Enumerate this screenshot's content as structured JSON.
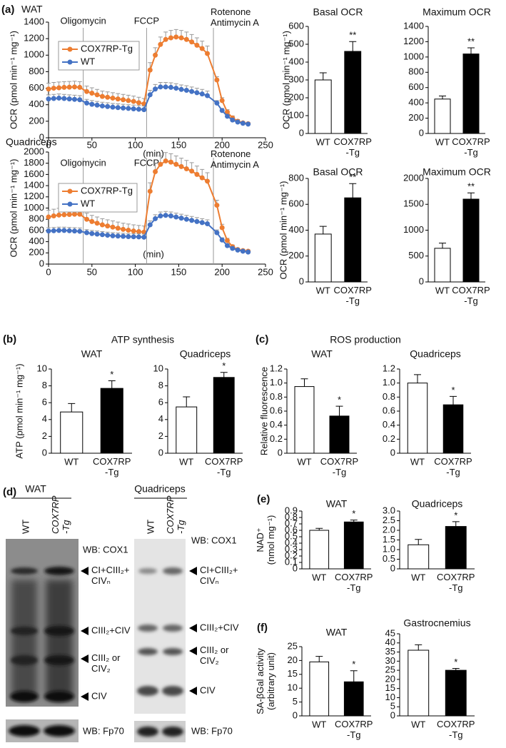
{
  "panels": [
    "(a)",
    "(b)",
    "(c)",
    "(d)",
    "(e)",
    "(f)"
  ],
  "group_titles": [
    "ATP synthesis",
    "ROS production"
  ],
  "blots": [
    {
      "title": "WAT",
      "lanes": [
        "WT",
        "COX7RP\n-Tg"
      ],
      "probe": "WB: COX1",
      "bands": [
        "CI+CIII₂+\nCIVₙ",
        "CIII₂+CIV",
        "CIII₂ or\nCIV₂",
        "CIV"
      ],
      "loading": "WB: Fp70"
    },
    {
      "title": "Quadriceps",
      "lanes": [
        "WT",
        "COX7RP\n-Tg"
      ],
      "probe": "WB: COX1",
      "bands": [
        "CI+CIII₂+\nCIVₙ",
        "CIII₂+CIV",
        "CIII₂ or\nCIV₂",
        "CIV"
      ],
      "loading": "WB: Fp70"
    }
  ],
  "chart_data": [
    {
      "type": "line",
      "title": "WAT",
      "ylabel": "OCR (pmol min⁻¹ mg⁻¹)",
      "xlabel": "(min)",
      "xlim": [
        0,
        250
      ],
      "xticks": [
        0,
        50,
        100,
        150,
        200,
        250
      ],
      "ylim": [
        0,
        1400
      ],
      "yticks": [
        0,
        200,
        400,
        600,
        800,
        1000,
        1200,
        1400
      ],
      "events": [
        {
          "label": "Oligomycin",
          "x": 40
        },
        {
          "label": "FCCP",
          "x": 113
        },
        {
          "label": "Rotenone\nAntimycin A",
          "x": 190
        }
      ],
      "x": [
        0,
        6,
        12,
        18,
        24,
        30,
        36,
        44,
        50,
        56,
        62,
        68,
        74,
        80,
        86,
        92,
        98,
        104,
        110,
        117,
        123,
        129,
        135,
        141,
        147,
        153,
        159,
        165,
        171,
        177,
        183,
        194,
        200,
        206,
        212,
        218,
        224,
        230
      ],
      "series": [
        {
          "name": "COX7RP-Tg",
          "color": "#ed7d31",
          "values": [
            590,
            600,
            605,
            610,
            612,
            615,
            610,
            560,
            540,
            520,
            500,
            490,
            480,
            470,
            460,
            450,
            440,
            425,
            410,
            820,
            1000,
            1130,
            1190,
            1210,
            1220,
            1210,
            1190,
            1160,
            1120,
            1080,
            1020,
            700,
            450,
            310,
            240,
            200,
            180,
            170
          ],
          "errors": [
            70,
            70,
            70,
            70,
            70,
            70,
            70,
            65,
            65,
            65,
            65,
            65,
            65,
            65,
            65,
            65,
            65,
            65,
            65,
            90,
            90,
            90,
            90,
            90,
            90,
            90,
            90,
            90,
            90,
            90,
            90,
            40,
            35,
            30,
            25,
            20,
            15,
            15
          ]
        },
        {
          "name": "WT",
          "color": "#4472c4",
          "values": [
            470,
            475,
            480,
            475,
            470,
            465,
            460,
            420,
            405,
            395,
            385,
            378,
            370,
            365,
            360,
            355,
            350,
            345,
            340,
            520,
            590,
            615,
            615,
            610,
            600,
            585,
            575,
            560,
            545,
            530,
            510,
            420,
            330,
            260,
            215,
            190,
            175,
            165
          ],
          "errors": [
            50,
            50,
            50,
            50,
            50,
            50,
            50,
            45,
            45,
            45,
            45,
            45,
            45,
            45,
            45,
            45,
            45,
            45,
            45,
            55,
            55,
            55,
            55,
            55,
            55,
            55,
            55,
            55,
            55,
            55,
            55,
            30,
            25,
            20,
            18,
            15,
            12,
            12
          ]
        }
      ]
    },
    {
      "type": "bar",
      "title": "Basal OCR",
      "ylabel": "OCR (pmol min⁻¹ mg⁻¹)",
      "categories": [
        "WT",
        "COX7RP\n-Tg"
      ],
      "values": [
        300,
        460
      ],
      "errors": [
        40,
        55
      ],
      "markers": [
        null,
        "**"
      ],
      "colors": [
        "#ffffff",
        "#000000"
      ],
      "ylim": [
        0,
        600
      ],
      "yticks": [
        0,
        100,
        200,
        300,
        400,
        500,
        600
      ]
    },
    {
      "type": "bar",
      "title": "Maximum OCR",
      "categories": [
        "WT",
        "COX7RP\n-Tg"
      ],
      "values": [
        450,
        1040
      ],
      "errors": [
        40,
        80
      ],
      "markers": [
        null,
        "**"
      ],
      "colors": [
        "#ffffff",
        "#000000"
      ],
      "ylim": [
        0,
        1400
      ],
      "yticks": [
        0,
        200,
        400,
        600,
        800,
        1000,
        1200,
        1400
      ]
    },
    {
      "type": "line",
      "title": "Quadriceps",
      "ylabel": "OCR (pmol min⁻¹ mg⁻¹)",
      "xlabel": "(min)",
      "xlim": [
        0,
        250
      ],
      "xticks": [
        0,
        50,
        100,
        150,
        200,
        250
      ],
      "ylim": [
        0,
        2000
      ],
      "yticks": [
        0,
        200,
        400,
        600,
        800,
        1000,
        1200,
        1400,
        1600,
        1800,
        2000
      ],
      "events": [
        {
          "label": "Oligomycin",
          "x": 40
        },
        {
          "label": "FCCP",
          "x": 113
        },
        {
          "label": "Rotenone\nAntimycin A",
          "x": 190
        }
      ],
      "x": [
        0,
        6,
        12,
        18,
        24,
        30,
        36,
        44,
        50,
        56,
        62,
        68,
        74,
        80,
        86,
        92,
        98,
        104,
        110,
        117,
        123,
        129,
        135,
        141,
        147,
        153,
        159,
        165,
        171,
        177,
        183,
        194,
        200,
        206,
        212,
        218,
        224,
        230
      ],
      "series": [
        {
          "name": "COX7RP-Tg",
          "color": "#ed7d31",
          "values": [
            840,
            860,
            875,
            880,
            885,
            890,
            890,
            800,
            760,
            730,
            700,
            680,
            660,
            640,
            620,
            605,
            590,
            580,
            570,
            1300,
            1650,
            1780,
            1840,
            1820,
            1780,
            1740,
            1700,
            1660,
            1600,
            1540,
            1480,
            1050,
            650,
            420,
            310,
            260,
            240,
            230
          ],
          "errors": [
            120,
            120,
            120,
            120,
            120,
            120,
            120,
            110,
            110,
            110,
            110,
            110,
            110,
            110,
            110,
            110,
            110,
            110,
            110,
            150,
            150,
            150,
            150,
            150,
            150,
            150,
            150,
            150,
            150,
            150,
            150,
            90,
            60,
            40,
            30,
            25,
            20,
            20
          ]
        },
        {
          "name": "WT",
          "color": "#4472c4",
          "values": [
            590,
            595,
            600,
            600,
            595,
            590,
            585,
            560,
            545,
            535,
            525,
            515,
            505,
            500,
            495,
            490,
            488,
            485,
            480,
            700,
            810,
            860,
            870,
            860,
            840,
            820,
            800,
            780,
            760,
            740,
            720,
            560,
            430,
            330,
            280,
            250,
            230,
            215
          ],
          "errors": [
            60,
            60,
            60,
            60,
            60,
            60,
            60,
            55,
            55,
            55,
            55,
            55,
            55,
            55,
            55,
            55,
            55,
            55,
            55,
            70,
            70,
            70,
            70,
            70,
            70,
            70,
            70,
            70,
            70,
            70,
            70,
            50,
            40,
            30,
            25,
            20,
            18,
            15
          ]
        }
      ]
    },
    {
      "type": "bar",
      "title": "Basal OCR",
      "ylabel": "OCR (pmol min⁻¹ mg⁻¹)",
      "categories": [
        "WT",
        "COX7RP\n-Tg"
      ],
      "values": [
        370,
        650
      ],
      "errors": [
        60,
        110
      ],
      "markers": [
        null,
        "**"
      ],
      "colors": [
        "#ffffff",
        "#000000"
      ],
      "ylim": [
        0,
        800
      ],
      "yticks": [
        0,
        200,
        400,
        600,
        800
      ]
    },
    {
      "type": "bar",
      "title": "Maximum OCR",
      "categories": [
        "WT",
        "COX7RP\n-Tg"
      ],
      "values": [
        650,
        1600
      ],
      "errors": [
        100,
        120
      ],
      "markers": [
        null,
        "**"
      ],
      "colors": [
        "#ffffff",
        "#000000"
      ],
      "ylim": [
        0,
        2000
      ],
      "yticks": [
        0,
        500,
        1000,
        1500,
        2000
      ]
    },
    {
      "type": "bar",
      "title": "WAT",
      "ylabel": "ATP (pmol min⁻¹ mg⁻¹)",
      "categories": [
        "WT",
        "COX7RP\n-Tg"
      ],
      "values": [
        4.9,
        7.7
      ],
      "errors": [
        1.0,
        0.9
      ],
      "markers": [
        null,
        "*"
      ],
      "colors": [
        "#ffffff",
        "#000000"
      ],
      "ylim": [
        0,
        10
      ],
      "yticks": [
        0,
        2,
        4,
        6,
        8,
        10
      ]
    },
    {
      "type": "bar",
      "title": "Quadriceps",
      "categories": [
        "WT",
        "COX7RP\n-Tg"
      ],
      "values": [
        5.5,
        9.0
      ],
      "errors": [
        1.2,
        0.6
      ],
      "markers": [
        null,
        "*"
      ],
      "colors": [
        "#ffffff",
        "#000000"
      ],
      "ylim": [
        0,
        10
      ],
      "yticks": [
        0,
        2,
        4,
        6,
        8,
        10
      ]
    },
    {
      "type": "bar",
      "title": "WAT",
      "ylabel": "Relative fluorescence",
      "categories": [
        "WT",
        "COX7RP\n-Tg"
      ],
      "values": [
        0.95,
        0.53
      ],
      "errors": [
        0.11,
        0.14
      ],
      "markers": [
        null,
        "*"
      ],
      "colors": [
        "#ffffff",
        "#000000"
      ],
      "ylim": [
        0,
        1.2
      ],
      "yticks": [
        0,
        0.2,
        0.4,
        0.6,
        0.8,
        {
          "value": 1,
          "label": "1.0"
        },
        1.2
      ]
    },
    {
      "type": "bar",
      "title": "Quadriceps",
      "categories": [
        "WT",
        "COX7RP\n-Tg"
      ],
      "values": [
        1.0,
        0.69
      ],
      "errors": [
        0.12,
        0.12
      ],
      "markers": [
        null,
        "*"
      ],
      "colors": [
        "#ffffff",
        "#000000"
      ],
      "ylim": [
        0,
        1.2
      ],
      "yticks": [
        0,
        0.2,
        0.4,
        0.6,
        0.8,
        {
          "value": 1,
          "label": "1.0"
        },
        1.2
      ]
    },
    {
      "type": "bar",
      "title": "WAT",
      "ylabel": "NAD⁺\n(nmol mg⁻¹)",
      "categories": [
        "WT",
        "COX7RP\n-Tg"
      ],
      "values": [
        0.6,
        0.73
      ],
      "errors": [
        0.03,
        0.03
      ],
      "markers": [
        null,
        "*"
      ],
      "colors": [
        "#ffffff",
        "#000000"
      ],
      "ylim": [
        0,
        0.9
      ],
      "yticks": [
        0,
        0.1,
        0.2,
        0.3,
        0.4,
        0.5,
        0.6,
        0.7,
        0.8,
        0.9
      ]
    },
    {
      "type": "bar",
      "title": "Quadriceps",
      "categories": [
        "WT",
        "COX7RP\n-Tg"
      ],
      "values": [
        1.25,
        2.2
      ],
      "errors": [
        0.28,
        0.25
      ],
      "markers": [
        null,
        "*"
      ],
      "colors": [
        "#ffffff",
        "#000000"
      ],
      "ylim": [
        0,
        3
      ],
      "yticks": [
        0,
        0.5,
        {
          "value": 1,
          "label": "1.0"
        },
        1.5,
        {
          "value": 2,
          "label": "2.0"
        },
        2.5,
        {
          "value": 3,
          "label": "3.0"
        }
      ]
    },
    {
      "type": "bar",
      "title": "WAT",
      "ylabel": "SA-βGal activity\n(arbitrary unit)",
      "categories": [
        "WT",
        "COX7RP\n-Tg"
      ],
      "values": [
        19.5,
        12.3
      ],
      "errors": [
        2.0,
        4.0
      ],
      "markers": [
        null,
        "*"
      ],
      "colors": [
        "#ffffff",
        "#000000"
      ],
      "ylim": [
        0,
        25
      ],
      "yticks": [
        0,
        5,
        10,
        15,
        20,
        25
      ]
    },
    {
      "type": "bar",
      "title": "Gastrocnemius",
      "categories": [
        "WT",
        "COX7RP\n-Tg"
      ],
      "values": [
        36,
        25
      ],
      "errors": [
        3,
        1
      ],
      "markers": [
        null,
        "*"
      ],
      "colors": [
        "#ffffff",
        "#000000"
      ],
      "ylim": [
        0,
        45
      ],
      "yticks": [
        0,
        5,
        10,
        15,
        20,
        25,
        30,
        35,
        40,
        45
      ]
    }
  ]
}
